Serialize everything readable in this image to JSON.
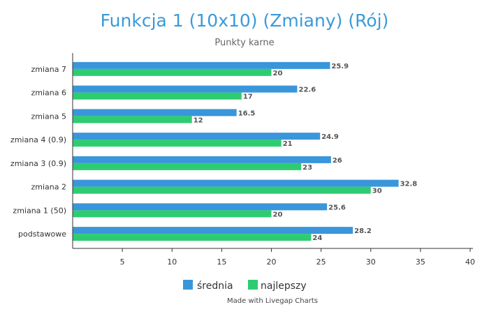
{
  "chart_data": {
    "type": "bar",
    "orientation": "horizontal",
    "title": "Funkcja 1 (10x10) (Zmiany) (Rój)",
    "subtitle": "Punkty karne",
    "categories": [
      "zmiana 7",
      "zmiana 6",
      "zmiana 5",
      "zmiana 4 (0.9)",
      "zmiana 3 (0.9)",
      "zmiana 2",
      "zmiana 1 (50)",
      "podstawowe"
    ],
    "series": [
      {
        "name": "średnia",
        "color": "#3a96db",
        "values": [
          25.9,
          22.6,
          16.5,
          24.9,
          26,
          32.8,
          25.6,
          28.2
        ],
        "labels": [
          "25.9",
          "22.6",
          "16.5",
          "24.9",
          "26",
          "32.8",
          "25.6",
          "28.2"
        ]
      },
      {
        "name": "najlepszy",
        "color": "#2ecc71",
        "values": [
          20,
          17,
          12,
          21,
          23,
          30,
          20,
          24
        ],
        "labels": [
          "20",
          "17",
          "12",
          "21",
          "23",
          "30",
          "20",
          "24"
        ]
      }
    ],
    "xlim": [
      0,
      40
    ],
    "xticks": [
      5,
      10,
      15,
      20,
      25,
      30,
      35,
      40
    ],
    "xtick_labels": [
      "5",
      "10",
      "15",
      "20",
      "25",
      "30",
      "35",
      "40"
    ],
    "grid": false,
    "legend_position": "bottom-center",
    "credit": "Made with Livegap Charts"
  }
}
